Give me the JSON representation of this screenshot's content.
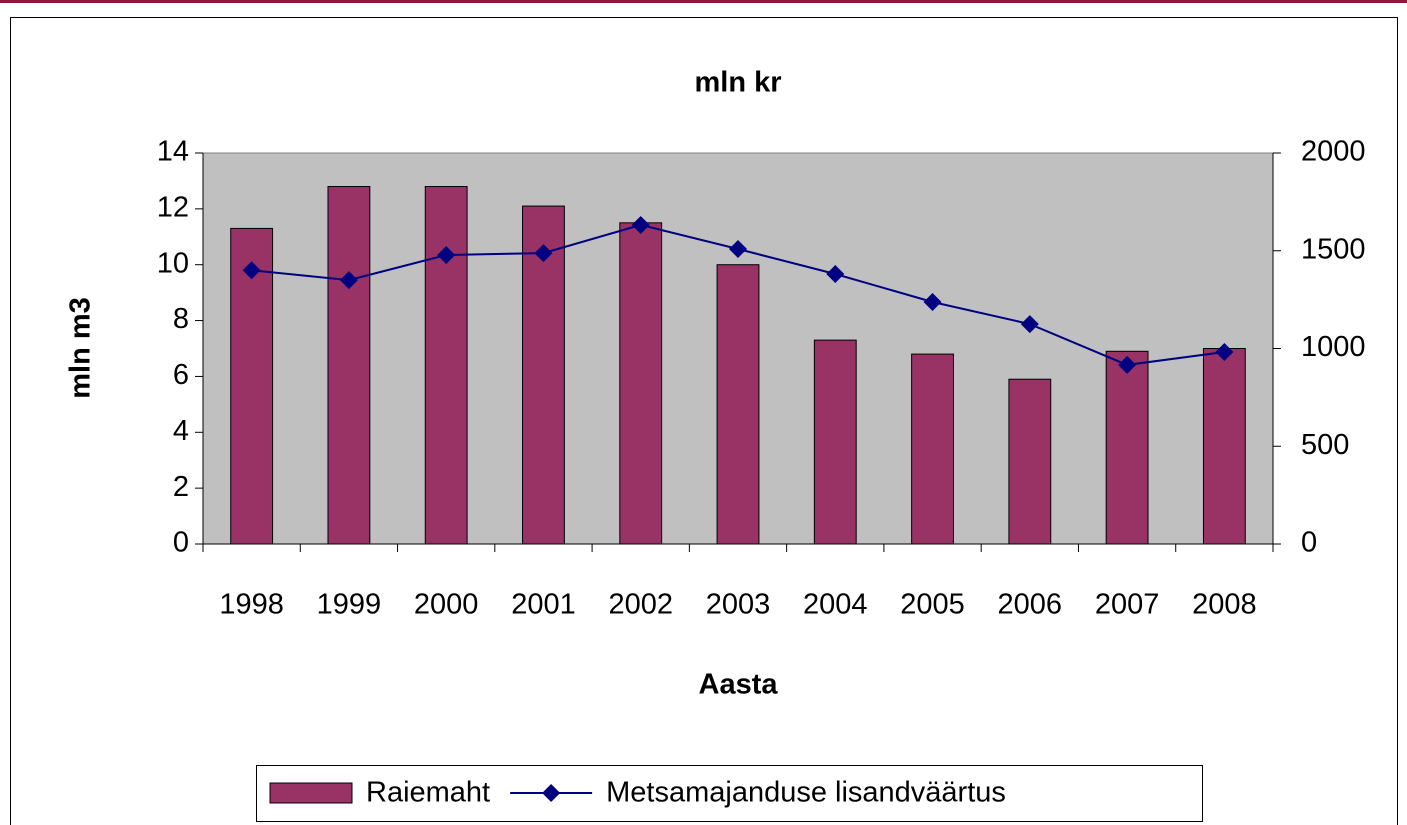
{
  "chart_data": {
    "type": "bar-line",
    "title": "mln kr",
    "xlabel": "Aasta",
    "ylabel": "mln m3",
    "categories": [
      "1998",
      "1999",
      "2000",
      "2001",
      "2002",
      "2003",
      "2004",
      "2005",
      "2006",
      "2007",
      "2008"
    ],
    "series": [
      {
        "name": "Raiemaht",
        "type": "bar",
        "color": "#993366",
        "values": [
          11.3,
          12.8,
          12.8,
          12.1,
          11.5,
          10.0,
          7.3,
          6.8,
          5.9,
          6.9,
          7.0
        ]
      },
      {
        "name": "Metsamajanduse lisandväärtus",
        "type": "line",
        "axis": "y2",
        "color": "#000080",
        "values": [
          1400,
          1350,
          1478,
          1488,
          1632,
          1509,
          1381,
          1238,
          1125,
          916,
          982
        ]
      }
    ],
    "ylim": [
      0,
      14
    ],
    "yticks": [
      0,
      2,
      4,
      6,
      8,
      10,
      12,
      14
    ],
    "y2lim": [
      0,
      2000
    ],
    "y2ticks": [
      0,
      500,
      1000,
      1500,
      2000
    ],
    "legend": "bottom",
    "plot_background": "#c0c0c0"
  }
}
